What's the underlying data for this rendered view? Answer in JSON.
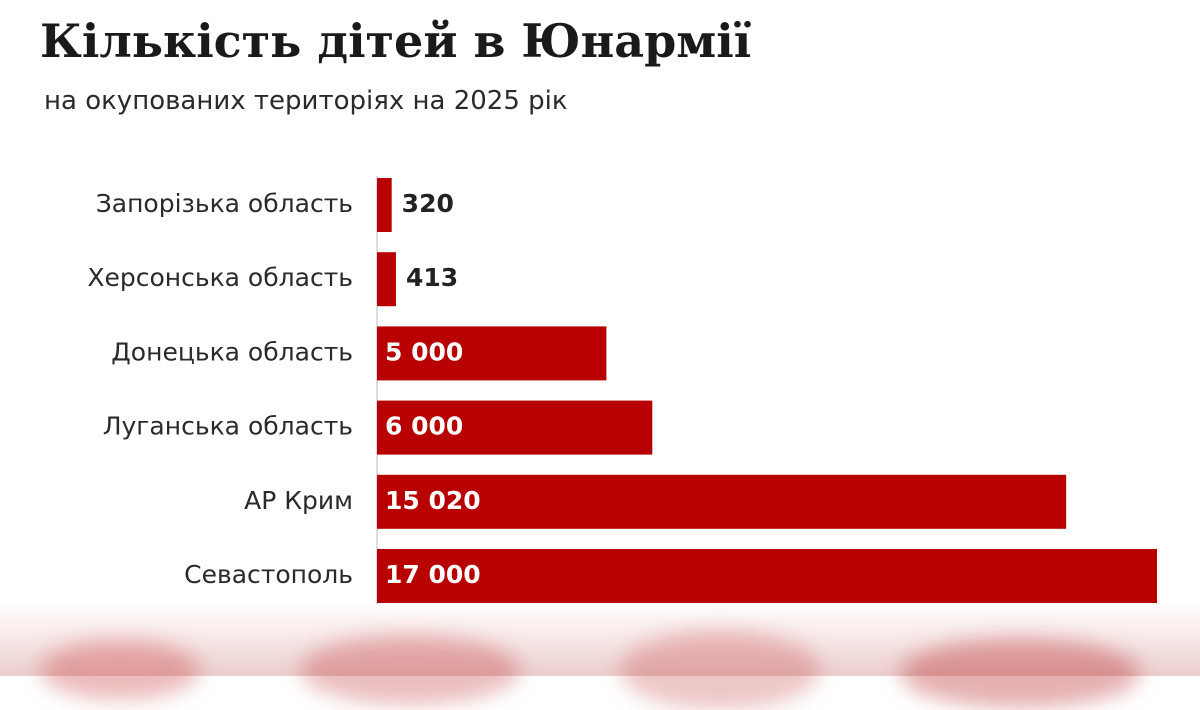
{
  "title": "Кількість дітей в Юнармії",
  "subtitle": "на окупованих територіях на 2025 рік",
  "chart_data": {
    "type": "bar",
    "orientation": "horizontal",
    "title": "Кількість дітей в Юнармії",
    "subtitle": "на окупованих територіях на 2025 рік",
    "categories": [
      "Запорізька область",
      "Херсонська область",
      "Донецька область",
      "Луганська область",
      "АР Крим",
      "Севастополь"
    ],
    "values": [
      320,
      413,
      5000,
      6000,
      15020,
      17000
    ],
    "value_labels": [
      "320",
      "413",
      "5 000",
      "6 000",
      "15 020",
      "17 000"
    ],
    "xlim": [
      0,
      17000
    ],
    "grid": false,
    "legend": "none",
    "bar_color": "#b80000",
    "inside_label_color": "#ffffff",
    "outside_label_color": "#222222"
  }
}
